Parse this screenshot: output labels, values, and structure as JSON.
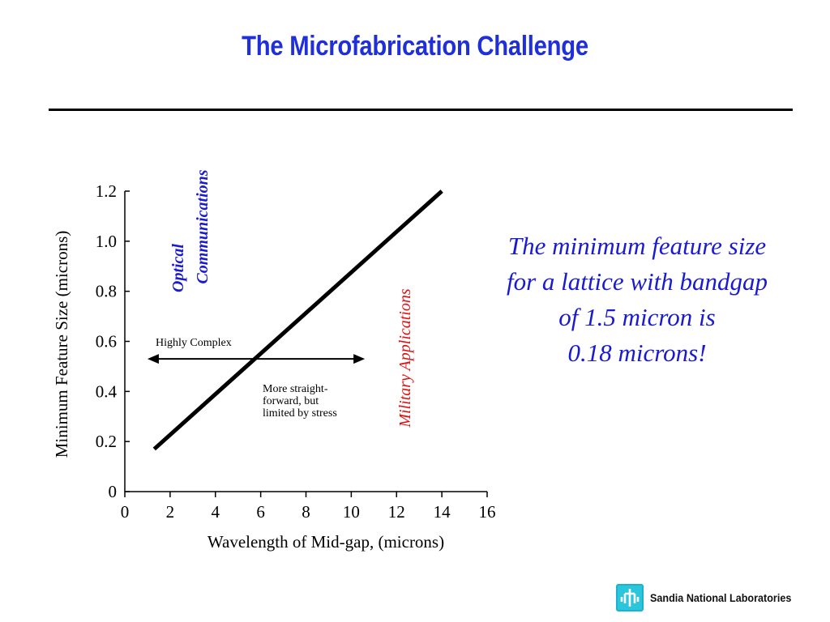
{
  "slide": {
    "title": "The Microfabrication Challenge",
    "callout_lines": [
      "The minimum feature size",
      "for a lattice with bandgap",
      "of 1.5 micron is",
      "0.18 microns!"
    ],
    "footer_org": "Sandia National Laboratories",
    "colors": {
      "title": "#1f2fd9",
      "callout": "#1a1acf",
      "optical_label": "#1a1acf",
      "military_label": "#e01010",
      "logo": "#2bc6dc"
    },
    "logo_icon": "sandia-thunderbird-logo-icon"
  },
  "chart_data": {
    "type": "line",
    "title": "",
    "xlabel": "Wavelength of Mid-gap, (microns)",
    "ylabel": "Minimum Feature Size (microns)",
    "xlim": [
      0,
      16
    ],
    "ylim": [
      0,
      1.2
    ],
    "x_ticks": [
      "0",
      "2",
      "4",
      "6",
      "8",
      "10",
      "12",
      "14",
      "16"
    ],
    "y_ticks": [
      "0",
      "0.2",
      "0.4",
      "0.6",
      "0.8",
      "1.0",
      "1.2"
    ],
    "series": [
      {
        "x": [
          1.3,
          14
        ],
        "y": [
          0.17,
          1.2
        ]
      }
    ],
    "annotations": {
      "optical": [
        "Optical",
        "Communications"
      ],
      "military": "Military Applications",
      "arrow_label": "Highly Complex",
      "note": [
        "More straight-",
        "forward, but",
        "limited by stress"
      ]
    },
    "arrow_range": {
      "x": [
        1,
        10.6
      ],
      "y": 0.53
    },
    "grid": false,
    "legend": "none"
  }
}
